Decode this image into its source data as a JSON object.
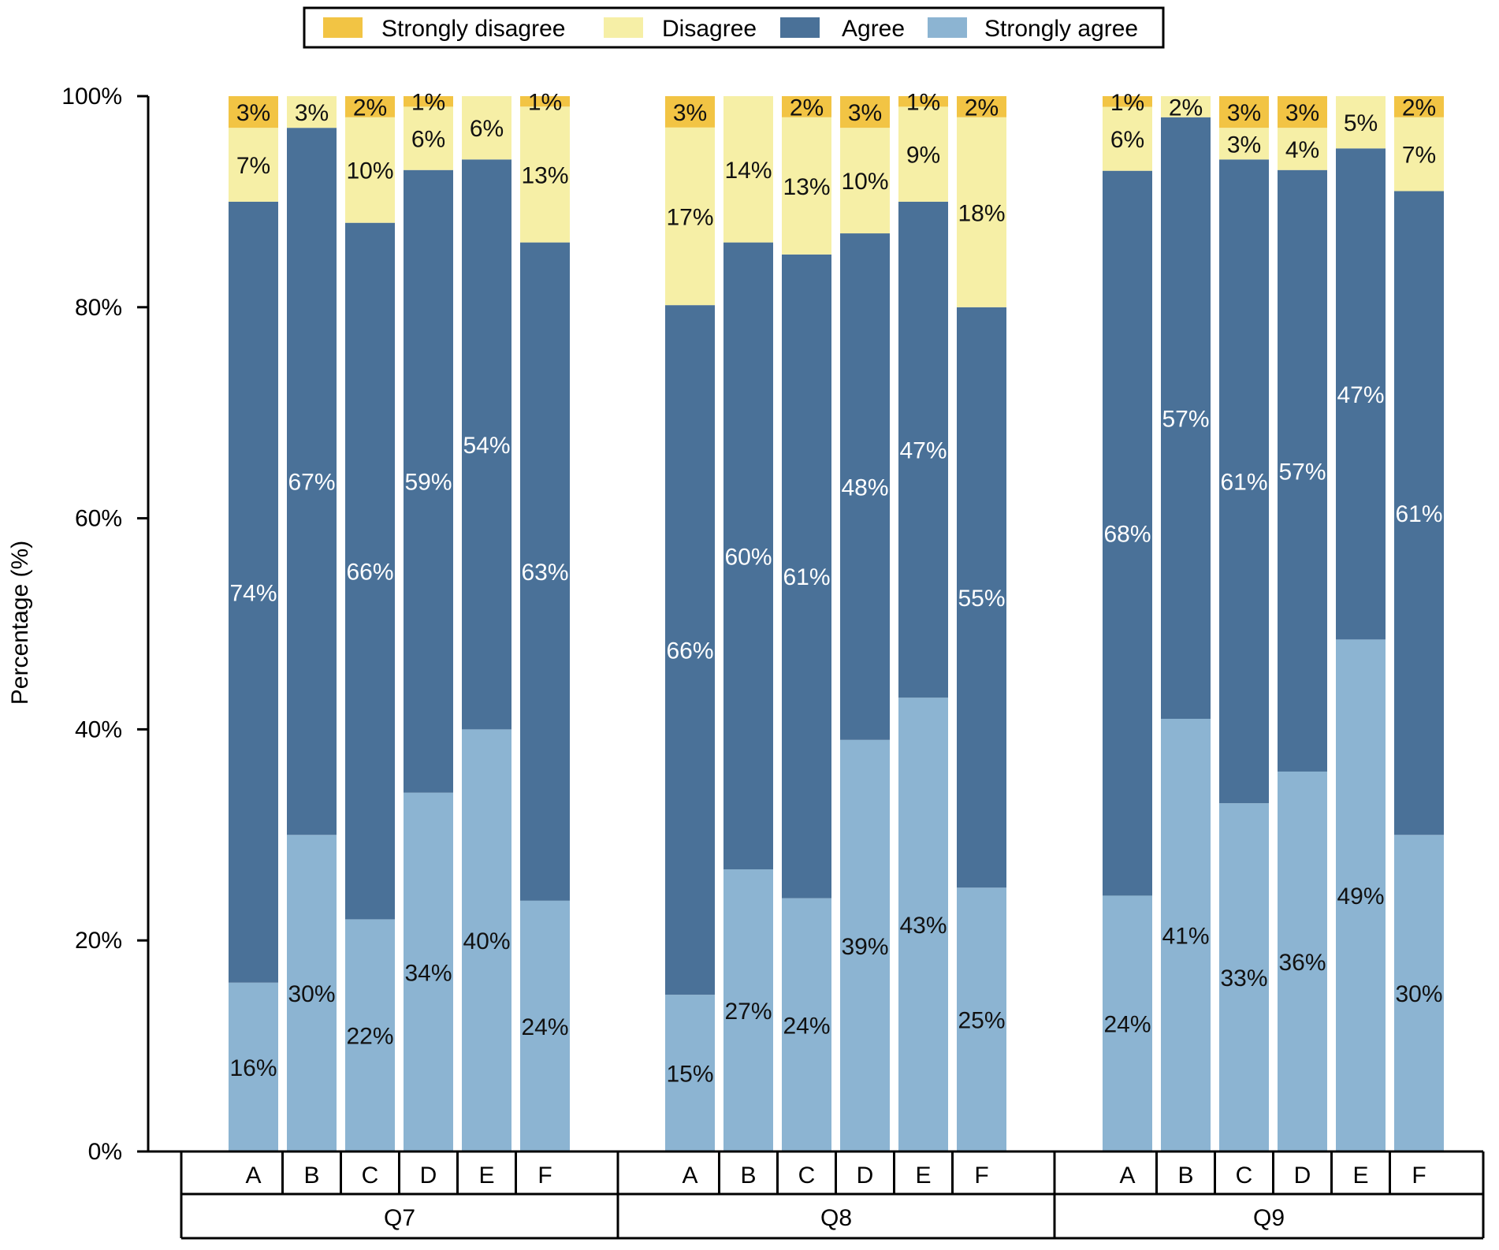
{
  "chart_data": {
    "type": "bar",
    "stacked": true,
    "ylabel": "Percentage (%)",
    "xlabel": "",
    "ylim": [
      0,
      100
    ],
    "yticks": [
      "0%",
      "20%",
      "40%",
      "60%",
      "80%",
      "100%"
    ],
    "yticks_values": [
      0,
      20,
      40,
      60,
      80,
      100
    ],
    "legend_position": "top-center",
    "colors": {
      "strongly_disagree": "#f2c444",
      "disagree": "#f6efa6",
      "agree": "#4a7198",
      "strongly_agree": "#8cb4d2"
    },
    "series": [
      {
        "key": "strongly_agree",
        "name": "Strongly agree"
      },
      {
        "key": "agree",
        "name": "Agree"
      },
      {
        "key": "disagree",
        "name": "Disagree"
      },
      {
        "key": "strongly_disagree",
        "name": "Strongly disagree"
      }
    ],
    "legend": [
      "Strongly disagree",
      "Disagree",
      "Agree",
      "Strongly agree"
    ],
    "groups": [
      {
        "name": "Q7",
        "bars": [
          {
            "category": "A",
            "strongly_agree": 16,
            "agree": 74,
            "disagree": 7,
            "strongly_disagree": 3,
            "labels": [
              "16%",
              "74%",
              "7%",
              "3%"
            ]
          },
          {
            "category": "B",
            "strongly_agree": 30,
            "agree": 67,
            "disagree": 3,
            "strongly_disagree": 0,
            "labels": [
              "30%",
              "67%",
              "3%",
              ""
            ]
          },
          {
            "category": "C",
            "strongly_agree": 22,
            "agree": 66,
            "disagree": 10,
            "strongly_disagree": 2,
            "labels": [
              "22%",
              "66%",
              "10%",
              "2%"
            ]
          },
          {
            "category": "D",
            "strongly_agree": 34,
            "agree": 59,
            "disagree": 6,
            "strongly_disagree": 1,
            "labels": [
              "34%",
              "59%",
              "6%",
              "1%"
            ]
          },
          {
            "category": "E",
            "strongly_agree": 40,
            "agree": 54,
            "disagree": 6,
            "strongly_disagree": 0,
            "labels": [
              "40%",
              "54%",
              "6%",
              ""
            ]
          },
          {
            "category": "F",
            "strongly_agree": 24,
            "agree": 63,
            "disagree": 13,
            "strongly_disagree": 1,
            "labels": [
              "24%",
              "63%",
              "13%",
              "1%"
            ]
          }
        ]
      },
      {
        "name": "Q8",
        "bars": [
          {
            "category": "A",
            "strongly_agree": 15,
            "agree": 66,
            "disagree": 17,
            "strongly_disagree": 3,
            "labels": [
              "15%",
              "66%",
              "17%",
              "3%"
            ]
          },
          {
            "category": "B",
            "strongly_agree": 27,
            "agree": 60,
            "disagree": 14,
            "strongly_disagree": 0,
            "labels": [
              "27%",
              "60%",
              "14%",
              ""
            ]
          },
          {
            "category": "C",
            "strongly_agree": 24,
            "agree": 61,
            "disagree": 13,
            "strongly_disagree": 2,
            "labels": [
              "24%",
              "61%",
              "13%",
              "2%"
            ]
          },
          {
            "category": "D",
            "strongly_agree": 39,
            "agree": 48,
            "disagree": 10,
            "strongly_disagree": 3,
            "labels": [
              "39%",
              "48%",
              "10%",
              "3%"
            ]
          },
          {
            "category": "E",
            "strongly_agree": 43,
            "agree": 47,
            "disagree": 9,
            "strongly_disagree": 1,
            "labels": [
              "43%",
              "47%",
              "9%",
              "1%"
            ]
          },
          {
            "category": "F",
            "strongly_agree": 25,
            "agree": 55,
            "disagree": 18,
            "strongly_disagree": 2,
            "labels": [
              "25%",
              "55%",
              "18%",
              "2%"
            ]
          }
        ]
      },
      {
        "name": "Q9",
        "bars": [
          {
            "category": "A",
            "strongly_agree": 24,
            "agree": 68,
            "disagree": 6,
            "strongly_disagree": 1,
            "labels": [
              "24%",
              "68%",
              "6%",
              "1%"
            ]
          },
          {
            "category": "B",
            "strongly_agree": 41,
            "agree": 57,
            "disagree": 2,
            "strongly_disagree": 0,
            "labels": [
              "41%",
              "57%",
              "2%",
              ""
            ]
          },
          {
            "category": "C",
            "strongly_agree": 33,
            "agree": 61,
            "disagree": 3,
            "strongly_disagree": 3,
            "labels": [
              "33%",
              "61%",
              "3%",
              "3%"
            ]
          },
          {
            "category": "D",
            "strongly_agree": 36,
            "agree": 57,
            "disagree": 4,
            "strongly_disagree": 3,
            "labels": [
              "36%",
              "57%",
              "4%",
              "3%"
            ]
          },
          {
            "category": "E",
            "strongly_agree": 49,
            "agree": 47,
            "disagree": 5,
            "strongly_disagree": 0,
            "labels": [
              "49%",
              "47%",
              "5%",
              ""
            ]
          },
          {
            "category": "F",
            "strongly_agree": 30,
            "agree": 61,
            "disagree": 7,
            "strongly_disagree": 2,
            "labels": [
              "30%",
              "61%",
              "7%",
              "2%"
            ]
          }
        ]
      }
    ]
  }
}
